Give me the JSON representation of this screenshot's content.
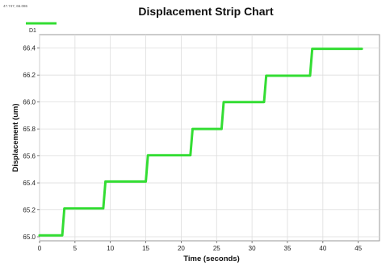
{
  "corner_readout": "47.747, 66.086",
  "chart_data": {
    "type": "line",
    "title": "Displacement Strip Chart",
    "xlabel": "Time (seconds)",
    "ylabel": "Displacement (um)",
    "xlim": [
      0,
      48
    ],
    "ylim": [
      64.97,
      66.5
    ],
    "x_ticks": [
      0,
      5,
      10,
      15,
      20,
      25,
      30,
      35,
      40,
      45
    ],
    "x_tick_labels": [
      "0",
      "5",
      "10",
      "15",
      "20",
      "25",
      "30",
      "35",
      "40",
      "45"
    ],
    "y_ticks": [
      65.0,
      65.2,
      65.4,
      65.6,
      65.8,
      66.0,
      66.2,
      66.4
    ],
    "y_tick_labels": [
      "65.0",
      "65.2",
      "65.4",
      "65.6",
      "65.8",
      "66.0",
      "66.2",
      "66.4"
    ],
    "grid": true,
    "legend_position": "top-left",
    "series": [
      {
        "name": "D1",
        "color": "#33dd33",
        "x": [
          0,
          3.2,
          3.5,
          9.0,
          9.3,
          15.0,
          15.3,
          21.3,
          21.6,
          25.7,
          26.0,
          31.7,
          32.0,
          38.2,
          38.5,
          45.5
        ],
        "y": [
          65.01,
          65.01,
          65.21,
          65.21,
          65.41,
          65.41,
          65.605,
          65.605,
          65.8,
          65.8,
          66.0,
          66.0,
          66.195,
          66.195,
          66.395,
          66.395
        ]
      }
    ]
  }
}
